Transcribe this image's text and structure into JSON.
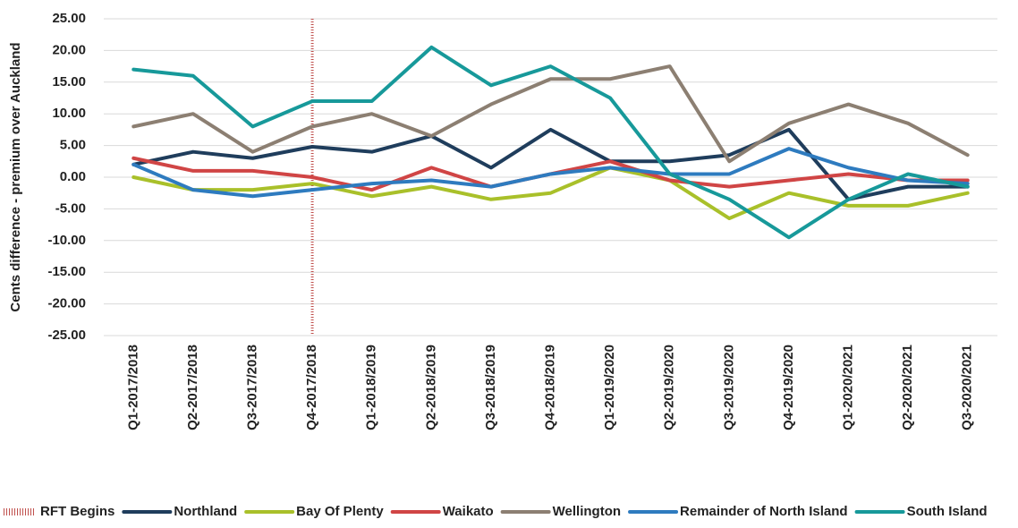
{
  "chart_data": {
    "type": "line",
    "y_axis_label": "Cents difference - premium over Auckland",
    "categories": [
      "Q1-2017/2018",
      "Q2-2017/2018",
      "Q3-2017/2018",
      "Q4-2017/2018",
      "Q1-2018/2019",
      "Q2-2018/2019",
      "Q3-2018/2019",
      "Q4-2018/2019",
      "Q1-2019/2020",
      "Q2-2019/2020",
      "Q3-2019/2020",
      "Q4-2019/2020",
      "Q1-2020/2021",
      "Q2-2020/2021",
      "Q3-2020/2021"
    ],
    "marker": {
      "name": "RFT Begins",
      "category": "Q4-2017/2018",
      "color": "#c0504d"
    },
    "series": [
      {
        "name": "Northland",
        "color": "#1f3d5c",
        "values": [
          2,
          4,
          3,
          4.8,
          4,
          6.5,
          1.5,
          7.5,
          2.5,
          2.5,
          3.5,
          7.5,
          -3.5,
          -1.5,
          -1.5
        ]
      },
      {
        "name": "Bay Of Plenty",
        "color": "#a9c02a",
        "values": [
          0,
          -2,
          -2,
          -1,
          -3,
          -1.5,
          -3.5,
          -2.5,
          1.5,
          -0.5,
          -6.5,
          -2.5,
          -4.5,
          -4.5,
          -2.5
        ]
      },
      {
        "name": "Waikato",
        "color": "#d04545",
        "values": [
          3,
          1,
          1,
          0,
          -2,
          1.5,
          -1.5,
          0.5,
          2.5,
          -0.5,
          -1.5,
          -0.5,
          0.5,
          -0.5,
          -0.5
        ]
      },
      {
        "name": "Wellington",
        "color": "#8c7f72",
        "values": [
          8,
          10,
          4,
          8,
          10,
          6.5,
          11.5,
          15.5,
          15.5,
          17.5,
          2.5,
          8.5,
          11.5,
          8.5,
          3.5
        ]
      },
      {
        "name": "Remainder of North Island",
        "color": "#2e7bbf",
        "values": [
          2,
          -2,
          -3,
          -2,
          -1,
          -0.5,
          -1.5,
          0.5,
          1.5,
          0.5,
          0.5,
          4.5,
          1.5,
          -0.5,
          -1
        ]
      },
      {
        "name": "South Island",
        "color": "#17999a",
        "values": [
          17,
          16,
          8,
          12,
          12,
          20.5,
          14.5,
          17.5,
          12.5,
          0.5,
          -3.5,
          -9.5,
          -3.5,
          0.5,
          -1.5
        ]
      }
    ],
    "ylim": [
      -25,
      25
    ],
    "yticks": [
      {
        "value": -25,
        "label": "-25.00"
      },
      {
        "value": -20,
        "label": "-20.00"
      },
      {
        "value": -15,
        "label": "-15.00"
      },
      {
        "value": -10,
        "label": "-10.00"
      },
      {
        "value": -5,
        "label": "-5.00"
      },
      {
        "value": 0,
        "label": "0.00"
      },
      {
        "value": 5,
        "label": "5.00"
      },
      {
        "value": 10,
        "label": "10.00"
      },
      {
        "value": 15,
        "label": "15.00"
      },
      {
        "value": 20,
        "label": "20.00"
      },
      {
        "value": 25,
        "label": "25.00"
      }
    ],
    "grid": true
  }
}
